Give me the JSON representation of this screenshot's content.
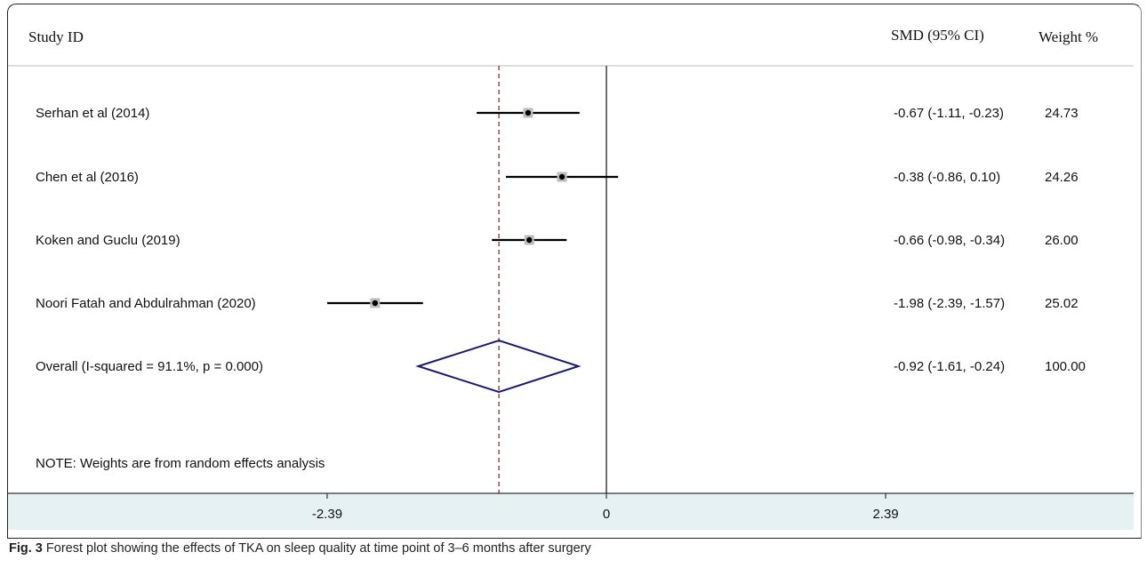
{
  "header": {
    "study_id": "Study ID",
    "smd": "SMD (95% CI)",
    "weight": "Weight %"
  },
  "note": "NOTE: Weights are from random effects analysis",
  "caption": {
    "label": "Fig. 3",
    "text": "Forest plot showing the effects of TKA on sleep quality at time point of 3–6 months after surgery"
  },
  "colors": {
    "overall_diamond": "#1a1a6e",
    "reference_dashed": "#8b1a1a",
    "axis_band": "#e6f2f2"
  },
  "chart_data": {
    "type": "forest",
    "x_ticks": [
      {
        "value": -2.39,
        "label": "-2.39"
      },
      {
        "value": 0,
        "label": "0"
      },
      {
        "value": 2.39,
        "label": "2.39"
      }
    ],
    "null_line": 0,
    "pooled_line": -0.92,
    "studies": [
      {
        "label": "Serhan et al (2014)",
        "smd": -0.67,
        "lo": -1.11,
        "hi": -0.23,
        "ci_text": "-0.67 (-1.11, -0.23)",
        "weight": "24.73"
      },
      {
        "label": "Chen et al (2016)",
        "smd": -0.38,
        "lo": -0.86,
        "hi": 0.1,
        "ci_text": "-0.38 (-0.86, 0.10)",
        "weight": "24.26"
      },
      {
        "label": "Koken and Guclu (2019)",
        "smd": -0.66,
        "lo": -0.98,
        "hi": -0.34,
        "ci_text": "-0.66 (-0.98, -0.34)",
        "weight": "26.00"
      },
      {
        "label": "Noori Fatah and Abdulrahman (2020)",
        "smd": -1.98,
        "lo": -2.39,
        "hi": -1.57,
        "ci_text": "-1.98 (-2.39, -1.57)",
        "weight": "25.02"
      }
    ],
    "overall": {
      "label": "Overall  (I-squared = 91.1%, p = 0.000)",
      "smd": -0.92,
      "lo": -1.61,
      "hi": -0.24,
      "ci_text": "-0.92 (-1.61, -0.24)",
      "weight": "100.00"
    }
  }
}
